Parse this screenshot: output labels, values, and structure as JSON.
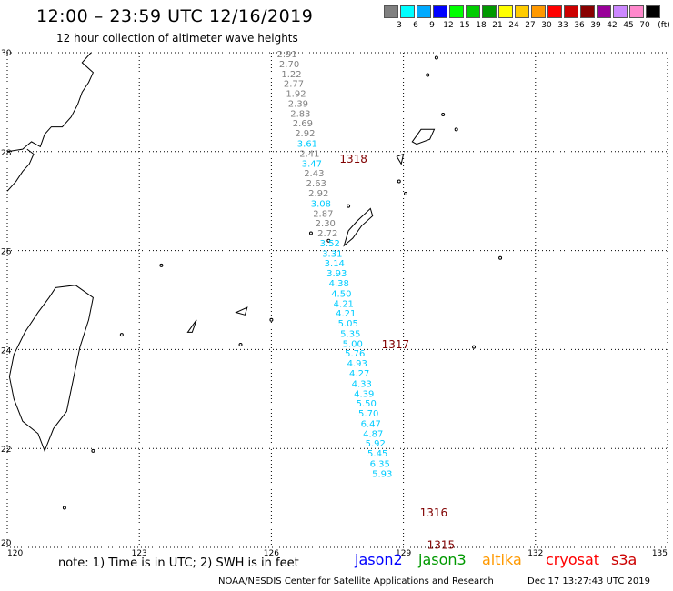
{
  "header": {
    "title": "12:00 – 23:59 UTC 12/16/2019",
    "subtitle": "12 hour collection of altimeter wave heights"
  },
  "legend": {
    "swatches": [
      {
        "color": "#808080",
        "label": "3"
      },
      {
        "color": "#00ffff",
        "label": "6"
      },
      {
        "color": "#00aaff",
        "label": "9"
      },
      {
        "color": "#0000ff",
        "label": "12"
      },
      {
        "color": "#00ff00",
        "label": "15"
      },
      {
        "color": "#00cc00",
        "label": "18"
      },
      {
        "color": "#009900",
        "label": "21"
      },
      {
        "color": "#ffff00",
        "label": "24"
      },
      {
        "color": "#ffcc00",
        "label": "27"
      },
      {
        "color": "#ff9900",
        "label": "30"
      },
      {
        "color": "#ff0000",
        "label": "33"
      },
      {
        "color": "#cc0000",
        "label": "36"
      },
      {
        "color": "#880000",
        "label": "39"
      },
      {
        "color": "#990099",
        "label": "42"
      },
      {
        "color": "#cc88ff",
        "label": "45"
      },
      {
        "color": "#ff88cc",
        "label": "70"
      },
      {
        "color": "#000000",
        "label": ""
      }
    ],
    "unit": "(ft)"
  },
  "axes": {
    "lon_labels": [
      "120",
      "123",
      "126",
      "129",
      "132",
      "135"
    ],
    "lat_labels": [
      "30",
      "28",
      "26",
      "24",
      "22",
      "20"
    ]
  },
  "passes": [
    {
      "id": "1318",
      "lat": 27.85
    },
    {
      "id": "1317",
      "lat": 24.1
    },
    {
      "id": "1316",
      "lat": 20.7
    },
    {
      "id": "1315",
      "lat": 20.05
    }
  ],
  "swh": [
    {
      "v": "2.91",
      "lat": 29.98,
      "c": "#808080"
    },
    {
      "v": "2.70",
      "lat": 29.78,
      "c": "#808080"
    },
    {
      "v": "1.22",
      "lat": 29.58,
      "c": "#808080"
    },
    {
      "v": "2.77",
      "lat": 29.38,
      "c": "#808080"
    },
    {
      "v": "1.92",
      "lat": 29.18,
      "c": "#808080"
    },
    {
      "v": "2.39",
      "lat": 28.98,
      "c": "#808080"
    },
    {
      "v": "2.83",
      "lat": 28.78,
      "c": "#808080"
    },
    {
      "v": "2.69",
      "lat": 28.58,
      "c": "#808080"
    },
    {
      "v": "2.92",
      "lat": 28.38,
      "c": "#808080"
    },
    {
      "v": "3.61",
      "lat": 28.17,
      "c": "#00ccff"
    },
    {
      "v": "2.41",
      "lat": 27.97,
      "c": "#808080"
    },
    {
      "v": "3.47",
      "lat": 27.77,
      "c": "#00ccff"
    },
    {
      "v": "2.43",
      "lat": 27.57,
      "c": "#808080"
    },
    {
      "v": "2.63",
      "lat": 27.37,
      "c": "#808080"
    },
    {
      "v": "2.92",
      "lat": 27.17,
      "c": "#808080"
    },
    {
      "v": "3.08",
      "lat": 26.96,
      "c": "#00ccff"
    },
    {
      "v": "2.87",
      "lat": 26.76,
      "c": "#808080"
    },
    {
      "v": "2.30",
      "lat": 26.56,
      "c": "#808080"
    },
    {
      "v": "2.72",
      "lat": 26.36,
      "c": "#808080"
    },
    {
      "v": "3.52",
      "lat": 26.16,
      "c": "#00ccff"
    },
    {
      "v": "3.31",
      "lat": 25.95,
      "c": "#00ccff"
    },
    {
      "v": "3.14",
      "lat": 25.75,
      "c": "#00ccff"
    },
    {
      "v": "3.93",
      "lat": 25.55,
      "c": "#00ccff"
    },
    {
      "v": "4.38",
      "lat": 25.35,
      "c": "#00ccff"
    },
    {
      "v": "4.50",
      "lat": 25.14,
      "c": "#00ccff"
    },
    {
      "v": "4.21",
      "lat": 24.94,
      "c": "#00ccff"
    },
    {
      "v": "4.21",
      "lat": 24.74,
      "c": "#00ccff"
    },
    {
      "v": "5.05",
      "lat": 24.54,
      "c": "#00ccff"
    },
    {
      "v": "5.35",
      "lat": 24.33,
      "c": "#00ccff"
    },
    {
      "v": "5.00",
      "lat": 24.13,
      "c": "#00ccff"
    },
    {
      "v": "5.76",
      "lat": 23.93,
      "c": "#00ccff"
    },
    {
      "v": "4.93",
      "lat": 23.73,
      "c": "#00ccff"
    },
    {
      "v": "4.27",
      "lat": 23.53,
      "c": "#00ccff"
    },
    {
      "v": "4.33",
      "lat": 23.32,
      "c": "#00ccff"
    },
    {
      "v": "4.39",
      "lat": 23.12,
      "c": "#00ccff"
    },
    {
      "v": "5.50",
      "lat": 22.92,
      "c": "#00ccff"
    },
    {
      "v": "5.70",
      "lat": 22.72,
      "c": "#00ccff"
    },
    {
      "v": "6.47",
      "lat": 22.51,
      "c": "#00ccff"
    },
    {
      "v": "4.87",
      "lat": 22.31,
      "c": "#00ccff"
    },
    {
      "v": "5.92",
      "lat": 22.11,
      "c": "#00ccff"
    },
    {
      "v": "5.45",
      "lat": 21.91,
      "c": "#00ccff"
    },
    {
      "v": "6.35",
      "lat": 21.7,
      "c": "#00ccff"
    },
    {
      "v": "5.93",
      "lat": 21.5,
      "c": "#00ccff"
    }
  ],
  "footer": {
    "note": "note: 1) Time is in UTC; 2) SWH is in feet",
    "satellites": [
      {
        "name": "jason2",
        "color": "#0000ff"
      },
      {
        "name": "jason3",
        "color": "#009900"
      },
      {
        "name": "altika",
        "color": "#ff9900"
      },
      {
        "name": "cryosat",
        "color": "#ff0000"
      },
      {
        "name": "s3a",
        "color": "#cc0000"
      }
    ],
    "credit": "NOAA/NESDIS Center for Satellite Applications and Research",
    "timestamp": "Dec 17 13:27:43 UTC 2019"
  }
}
